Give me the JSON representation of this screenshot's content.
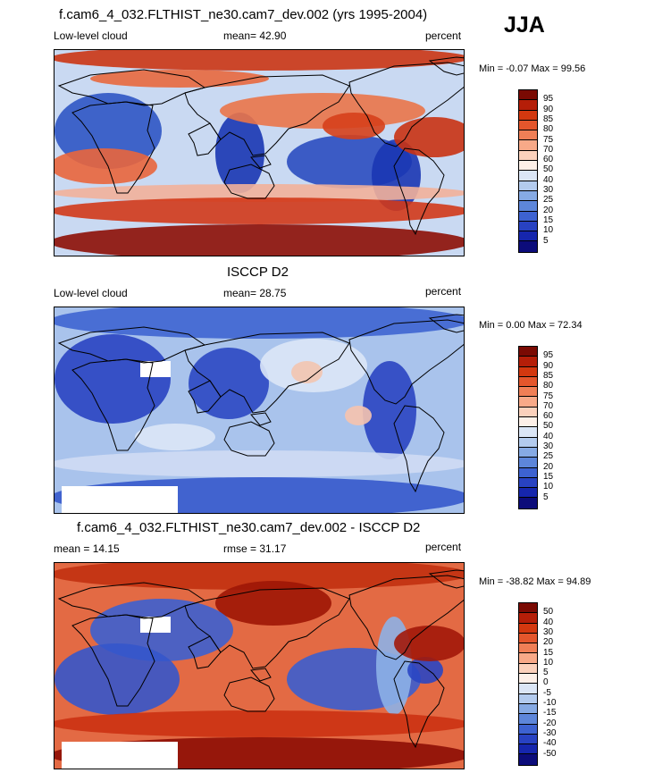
{
  "season": "JJA",
  "panels": [
    {
      "title": "f.cam6_4_032.FLTHIST_ne30.cam7_dev.002 (yrs 1995-2004)",
      "left": "Low-level cloud",
      "center": "mean=  42.90",
      "right": "percent",
      "minmax": "Min =  -0.07 Max =  99.56",
      "levels": [
        "95",
        "90",
        "85",
        "80",
        "75",
        "70",
        "60",
        "50",
        "40",
        "30",
        "25",
        "20",
        "15",
        "10",
        "5"
      ],
      "colors": [
        "#7a0a03",
        "#b51e08",
        "#d3380f",
        "#e4562c",
        "#f07f56",
        "#f8a988",
        "#fbd1bc",
        "#fdf0e8",
        "#dbe6f6",
        "#b3cbee",
        "#86aae4",
        "#5d86da",
        "#3d62d1",
        "#2842c2",
        "#1626ad",
        "#0c0c7a"
      ],
      "base": "#c9d9f2",
      "blobs": [
        {
          "c": "#cb3514",
          "x": -5,
          "y": -5,
          "w": 470,
          "h": 28
        },
        {
          "c": "#e8683e",
          "x": 40,
          "y": 22,
          "w": 200,
          "h": 20
        },
        {
          "c": "#2f55c4",
          "x": 0,
          "y": 48,
          "w": 120,
          "h": 85
        },
        {
          "c": "#1a36b3",
          "x": 180,
          "y": 70,
          "w": 55,
          "h": 90
        },
        {
          "c": "#ea7449",
          "x": 185,
          "y": 48,
          "w": 230,
          "h": 40
        },
        {
          "c": "#2b4cc0",
          "x": 260,
          "y": 95,
          "w": 140,
          "h": 60
        },
        {
          "c": "#1b36b2",
          "x": 355,
          "y": 100,
          "w": 55,
          "h": 80
        },
        {
          "c": "#c93213",
          "x": 380,
          "y": 75,
          "w": 90,
          "h": 45
        },
        {
          "c": "#d6401b",
          "x": 300,
          "y": 70,
          "w": 70,
          "h": 30
        },
        {
          "c": "#e9653c",
          "x": -5,
          "y": 110,
          "w": 120,
          "h": 40
        },
        {
          "c": "#f2b09a",
          "x": -5,
          "y": 150,
          "w": 470,
          "h": 20
        },
        {
          "c": "#d2391a",
          "x": -5,
          "y": 165,
          "w": 470,
          "h": 30
        },
        {
          "c": "#8d0e05",
          "x": -5,
          "y": 195,
          "w": 470,
          "h": 40
        }
      ]
    },
    {
      "title": "ISCCP D2",
      "left": "Low-level cloud",
      "center": "mean=  28.75",
      "right": "percent",
      "minmax": "Min =   0.00 Max =  72.34",
      "levels": [
        "95",
        "90",
        "85",
        "80",
        "75",
        "70",
        "60",
        "50",
        "40",
        "30",
        "25",
        "20",
        "15",
        "10",
        "5"
      ],
      "colors": [
        "#7a0a03",
        "#b51e08",
        "#d3380f",
        "#e4562c",
        "#f07f56",
        "#f8a988",
        "#fbd1bc",
        "#fdf0e8",
        "#dbe6f6",
        "#b3cbee",
        "#86aae4",
        "#5d86da",
        "#3d62d1",
        "#2842c2",
        "#1626ad",
        "#0c0c7a"
      ],
      "base": "#a9c3ec",
      "blobs": [
        {
          "c": "#3e65d2",
          "x": -5,
          "y": -5,
          "w": 470,
          "h": 40
        },
        {
          "c": "#2944c2",
          "x": 0,
          "y": 30,
          "w": 130,
          "h": 100
        },
        {
          "c": "#2b48c3",
          "x": 150,
          "y": 45,
          "w": 90,
          "h": 80
        },
        {
          "c": "#dce7f7",
          "x": 230,
          "y": 35,
          "w": 120,
          "h": 60
        },
        {
          "c": "#f3c4b0",
          "x": 265,
          "y": 60,
          "w": 35,
          "h": 25
        },
        {
          "c": "#2a45c2",
          "x": 345,
          "y": 60,
          "w": 60,
          "h": 110
        },
        {
          "c": "#f6c3ae",
          "x": 325,
          "y": 110,
          "w": 30,
          "h": 22
        },
        {
          "c": "#dce7f7",
          "x": 90,
          "y": 130,
          "w": 90,
          "h": 30
        },
        {
          "c": "#cfdcf4",
          "x": -5,
          "y": 160,
          "w": 470,
          "h": 30
        },
        {
          "c": "#3559cc",
          "x": -5,
          "y": 190,
          "w": 470,
          "h": 45
        }
      ],
      "masks": [
        {
          "x": 96,
          "y": 60,
          "w": 34,
          "h": 18
        },
        {
          "x": 8,
          "y": 200,
          "w": 130,
          "h": 30
        }
      ]
    },
    {
      "title": "f.cam6_4_032.FLTHIST_ne30.cam7_dev.002 - ISCCP D2",
      "left": "mean =  14.15",
      "center": "rmse =  31.17",
      "right": "percent",
      "minmax": "Min = -38.82 Max =  94.89",
      "levels": [
        "50",
        "40",
        "30",
        "20",
        "15",
        "10",
        "5",
        "0",
        "-5",
        "-10",
        "-15",
        "-20",
        "-30",
        "-40",
        "-50"
      ],
      "colors": [
        "#7a0a03",
        "#b51e08",
        "#d3380f",
        "#e4562c",
        "#f07f56",
        "#f8a988",
        "#fbd1bc",
        "#fdf0e8",
        "#dbe6f6",
        "#b3cbee",
        "#86aae4",
        "#5d86da",
        "#3d62d1",
        "#2842c2",
        "#1626ad",
        "#0c0c7a"
      ],
      "base": "#e36a44",
      "blobs": [
        {
          "c": "#c13111",
          "x": -5,
          "y": -5,
          "w": 470,
          "h": 35
        },
        {
          "c": "#9d1606",
          "x": 180,
          "y": 20,
          "w": 130,
          "h": 50
        },
        {
          "c": "#3c61d0",
          "x": 40,
          "y": 40,
          "w": 160,
          "h": 70
        },
        {
          "c": "#3557cb",
          "x": 0,
          "y": 90,
          "w": 140,
          "h": 80
        },
        {
          "c": "#3b5ecf",
          "x": 260,
          "y": 95,
          "w": 150,
          "h": 70
        },
        {
          "c": "#8db1e7",
          "x": 360,
          "y": 60,
          "w": 40,
          "h": 110
        },
        {
          "c": "#2a46c3",
          "x": 395,
          "y": 105,
          "w": 40,
          "h": 30
        },
        {
          "c": "#a2180a",
          "x": 380,
          "y": 70,
          "w": 80,
          "h": 40
        },
        {
          "c": "#cb3213",
          "x": -5,
          "y": 165,
          "w": 470,
          "h": 30
        },
        {
          "c": "#8d0e05",
          "x": -5,
          "y": 195,
          "w": 470,
          "h": 40
        }
      ],
      "masks": [
        {
          "x": 96,
          "y": 60,
          "w": 34,
          "h": 18
        },
        {
          "x": 8,
          "y": 200,
          "w": 130,
          "h": 30
        }
      ]
    }
  ]
}
